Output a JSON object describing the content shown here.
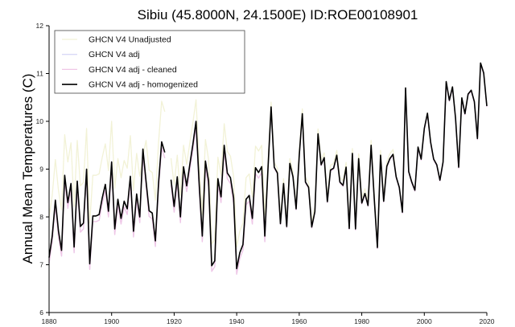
{
  "chart_data": {
    "type": "line",
    "title": "Sibiu (45.8000N, 24.1500E) ID:ROE00108901",
    "xlabel": "",
    "ylabel": "Annual Mean Temperatures (C)",
    "xlim": [
      1880,
      2020
    ],
    "ylim": [
      6,
      12
    ],
    "xticks": [
      1880,
      1900,
      1920,
      1940,
      1960,
      1980,
      2000,
      2020
    ],
    "yticks": [
      6,
      7,
      8,
      9,
      10,
      11,
      12
    ],
    "grid": false,
    "legend_position": "top-left",
    "x_start": 1880,
    "series": [
      {
        "name": "GHCN V4 Unadjusted",
        "color": "#f2f2d6",
        "values": [
          8.0,
          8.45,
          9.2,
          8.55,
          8.15,
          9.72,
          9.15,
          9.55,
          8.22,
          9.6,
          8.65,
          8.72,
          9.85,
          7.87,
          8.87,
          8.87,
          8.9,
          9.25,
          9.53,
          8.97,
          10.0,
          8.6,
          9.22,
          8.82,
          9.18,
          9.02,
          9.7,
          8.55,
          9.33,
          8.85,
          9.27,
          9.6,
          8.98,
          8.93,
          8.35,
          9.55,
          10.42,
          10.2,
          null,
          9.23,
          8.67,
          9.29,
          8.45,
          9.5,
          9.1,
          9.55,
          9.97,
          10.45,
          9.15,
          8.05,
          9.62,
          9.2,
          7.43,
          7.53,
          9.25,
          8.87,
          9.95,
          9.37,
          9.27,
          8.85,
          7.37,
          7.7,
          7.87,
          8.82,
          8.9,
          8.42,
          9.48,
          9.38,
          9.5,
          8.05,
          9.1,
          10.4,
          9.14,
          9.02,
          7.96,
          8.8,
          7.9,
          9.22,
          8.94,
          8.27,
          9.39,
          10.26,
          8.83,
          8.72,
          7.89,
          8.21,
          9.84,
          9.19,
          9.34,
          8.42,
          9.08,
          9.12,
          9.39,
          8.83,
          8.76,
          9.14,
          7.86,
          9.43,
          7.85,
          9.32,
          8.39,
          8.59,
          8.34,
          9.6,
          8.48,
          7.46,
          9.39,
          8.43,
          9.16,
          9.32,
          9.41,
          8.84,
          8.62,
          8.1,
          10.7,
          8.95,
          8.73,
          8.56,
          9.46,
          9.21,
          9.85,
          10.17,
          9.57,
          9.21,
          9.09,
          8.77,
          9.15,
          10.83,
          10.44,
          10.72,
          10.07,
          9.04,
          10.49,
          10.16,
          10.57,
          10.65,
          10.41,
          9.64,
          11.22,
          11.01,
          10.32
        ]
      },
      {
        "name": "GHCN V4 adj",
        "color": "#d9d9f6",
        "values": [
          7.03,
          7.48,
          8.23,
          7.58,
          7.18,
          8.75,
          8.18,
          8.58,
          7.25,
          8.63,
          7.68,
          7.75,
          8.88,
          6.9,
          7.9,
          7.9,
          7.93,
          8.28,
          8.56,
          8.0,
          9.03,
          7.63,
          8.25,
          7.85,
          8.21,
          8.05,
          8.73,
          7.58,
          8.36,
          7.88,
          9.3,
          8.63,
          8.01,
          7.96,
          7.38,
          8.58,
          9.45,
          9.23,
          null,
          8.66,
          8.1,
          8.72,
          7.88,
          8.93,
          8.53,
          8.98,
          9.4,
          9.88,
          8.58,
          7.48,
          9.05,
          8.63,
          6.86,
          6.96,
          8.68,
          8.3,
          9.38,
          8.8,
          8.7,
          8.28,
          6.8,
          7.13,
          7.3,
          8.25,
          8.33,
          7.85,
          8.91,
          8.81,
          8.93,
          7.48,
          8.98,
          10.28,
          9.02,
          8.9,
          7.84,
          8.68,
          7.78,
          9.1,
          8.82,
          8.15,
          9.27,
          10.14,
          8.71,
          8.6,
          7.77,
          8.09,
          9.72,
          9.07,
          9.22,
          8.3,
          8.96,
          9.0,
          9.27,
          8.71,
          8.64,
          9.02,
          7.74,
          9.31,
          7.73,
          9.2,
          8.27,
          8.47,
          8.22,
          9.48,
          8.36,
          7.34,
          9.27,
          8.31,
          9.04,
          9.2,
          9.29,
          8.82,
          8.6,
          8.08,
          10.68,
          8.93,
          8.71,
          8.54,
          9.44,
          9.19,
          9.83,
          10.15,
          9.55,
          9.19,
          9.07,
          8.75,
          9.13,
          10.81,
          10.42,
          10.7,
          10.05,
          9.02,
          10.47,
          10.14,
          10.55,
          10.63,
          10.39,
          9.62,
          11.2,
          10.99,
          10.3
        ]
      },
      {
        "name": "GHCN V4 adj - cleaned",
        "color": "#f0c6e6",
        "values": [
          7.03,
          7.48,
          8.23,
          7.58,
          7.18,
          8.75,
          8.18,
          8.58,
          7.25,
          8.63,
          7.68,
          7.75,
          8.88,
          6.9,
          7.9,
          7.9,
          7.93,
          8.28,
          8.56,
          8.0,
          9.03,
          7.63,
          8.25,
          7.85,
          8.21,
          8.05,
          8.73,
          7.58,
          8.36,
          7.88,
          9.3,
          8.63,
          8.01,
          7.96,
          7.38,
          8.58,
          9.45,
          9.23,
          null,
          8.66,
          8.1,
          8.72,
          7.88,
          8.93,
          8.53,
          8.98,
          9.4,
          9.88,
          8.58,
          7.48,
          9.05,
          8.63,
          6.86,
          6.96,
          8.68,
          8.3,
          9.38,
          8.8,
          8.7,
          8.28,
          6.8,
          7.13,
          7.3,
          8.25,
          8.33,
          7.85,
          8.91,
          8.81,
          8.93,
          7.48,
          8.98,
          10.28,
          9.02,
          8.9,
          7.84,
          8.68,
          7.78,
          9.1,
          8.82,
          8.15,
          9.27,
          10.14,
          8.71,
          8.6,
          7.77,
          8.09,
          9.72,
          9.07,
          9.22,
          8.3,
          8.96,
          9.0,
          9.27,
          8.71,
          8.64,
          9.02,
          7.74,
          9.31,
          7.73,
          9.2,
          8.27,
          8.47,
          8.22,
          9.48,
          8.36,
          7.34,
          9.27,
          8.31,
          9.04,
          9.2,
          9.29,
          8.82,
          8.6,
          8.08,
          10.68,
          8.93,
          8.71,
          8.54,
          9.44,
          9.19,
          9.83,
          10.15,
          9.55,
          9.19,
          9.07,
          8.75,
          9.13,
          10.81,
          10.42,
          10.7,
          10.05,
          9.02,
          10.47,
          10.14,
          10.55,
          10.63,
          10.39,
          9.62,
          11.2,
          10.99,
          10.3
        ]
      },
      {
        "name": "GHCN V4 adj - homogenized",
        "color": "#000000",
        "values": [
          7.15,
          7.6,
          8.35,
          7.7,
          7.3,
          8.87,
          8.3,
          8.7,
          7.37,
          8.75,
          7.8,
          7.87,
          9.0,
          7.02,
          8.02,
          8.02,
          8.05,
          8.4,
          8.68,
          8.12,
          9.15,
          7.75,
          8.37,
          7.97,
          8.33,
          8.17,
          8.85,
          7.7,
          8.48,
          8.0,
          9.42,
          8.75,
          8.13,
          8.08,
          7.5,
          8.7,
          9.57,
          9.35,
          null,
          8.78,
          8.22,
          8.84,
          8.0,
          9.05,
          8.65,
          9.1,
          9.52,
          10.0,
          8.7,
          7.6,
          9.17,
          8.75,
          6.98,
          7.08,
          8.8,
          8.42,
          9.5,
          8.92,
          8.82,
          8.4,
          6.92,
          7.25,
          7.42,
          8.37,
          8.45,
          7.97,
          9.03,
          8.93,
          9.05,
          7.6,
          9.0,
          10.3,
          9.04,
          8.92,
          7.86,
          8.7,
          7.8,
          9.12,
          8.84,
          8.17,
          9.29,
          10.16,
          8.73,
          8.62,
          7.79,
          8.11,
          9.74,
          9.09,
          9.24,
          8.32,
          8.98,
          9.02,
          9.29,
          8.73,
          8.66,
          9.04,
          7.76,
          9.33,
          7.75,
          9.22,
          8.29,
          8.49,
          8.24,
          9.5,
          8.38,
          7.36,
          9.29,
          8.33,
          9.06,
          9.22,
          9.31,
          8.84,
          8.62,
          8.1,
          10.7,
          8.95,
          8.73,
          8.56,
          9.46,
          9.21,
          9.85,
          10.17,
          9.57,
          9.21,
          9.09,
          8.77,
          9.15,
          10.83,
          10.44,
          10.72,
          10.07,
          9.04,
          10.49,
          10.16,
          10.57,
          10.65,
          10.41,
          9.64,
          11.22,
          11.01,
          10.32
        ]
      }
    ]
  }
}
